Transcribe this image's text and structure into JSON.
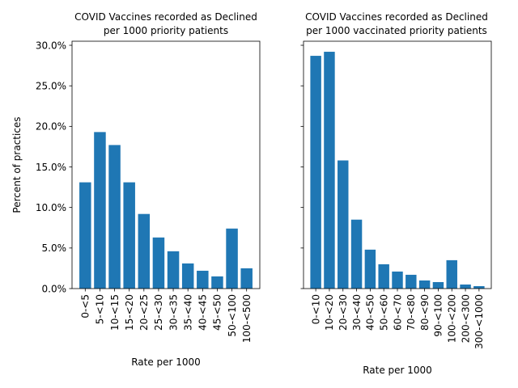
{
  "chart_data": [
    {
      "type": "bar",
      "title_lines": [
        "COVID Vaccines recorded as Declined",
        "per 1000 priority patients"
      ],
      "xlabel": "Rate per 1000",
      "ylabel": "Percent of practices",
      "categories": [
        "0-<5",
        "5-<10",
        "10-<15",
        "15-<20",
        "20-<25",
        "25-<30",
        "30-<35",
        "35-<40",
        "40-<45",
        "45-<50",
        "50-<100",
        "100-<500"
      ],
      "values": [
        13.1,
        19.3,
        17.7,
        13.1,
        9.2,
        6.3,
        4.6,
        3.1,
        2.2,
        1.5,
        7.4,
        2.5
      ],
      "ylim": [
        0,
        30.5
      ],
      "yticks": [
        0,
        5,
        10,
        15,
        20,
        25,
        30
      ],
      "ytick_labels": [
        "0.0%",
        "5.0%",
        "10.0%",
        "15.0%",
        "20.0%",
        "25.0%",
        "30.0%"
      ],
      "color": "#1f77b4",
      "grid": false
    },
    {
      "type": "bar",
      "title_lines": [
        "COVID Vaccines recorded as Declined",
        "per 1000 vaccinated priority patients"
      ],
      "xlabel": "Rate per 1000",
      "ylabel": "",
      "categories": [
        "0-<10",
        "10-<20",
        "20-<30",
        "30-<40",
        "40-<50",
        "50-<60",
        "60-<70",
        "70-<80",
        "80-<90",
        "90-<100",
        "100-<200",
        "200-<300",
        "300-<1000"
      ],
      "values": [
        28.7,
        29.2,
        15.8,
        8.5,
        4.8,
        3.0,
        2.1,
        1.7,
        1.0,
        0.8,
        3.5,
        0.5,
        0.3
      ],
      "ylim": [
        0,
        30.5
      ],
      "yticks": [
        0,
        5,
        10,
        15,
        20,
        25,
        30
      ],
      "ytick_labels": [],
      "color": "#1f77b4",
      "grid": false
    }
  ]
}
